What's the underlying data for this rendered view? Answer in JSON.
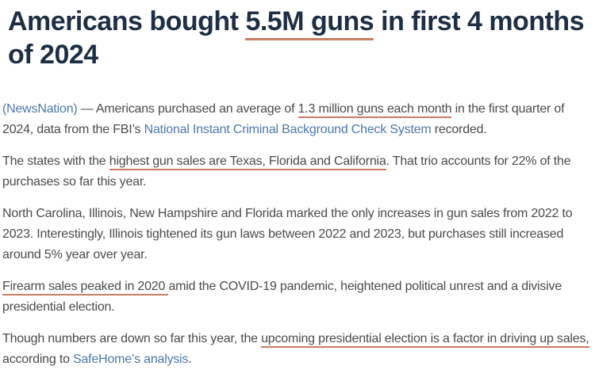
{
  "colors": {
    "background": "#ffffff",
    "headline_text": "#1d2e45",
    "body_text": "#4b4b4b",
    "link": "#4e78ae",
    "annotation_underline": "#c87e64"
  },
  "headline": {
    "segments": [
      {
        "text": "Americans bought ",
        "style": "plain"
      },
      {
        "text": "5.5M guns",
        "style": "underline"
      },
      {
        "text": " in first 4 months of 2024",
        "style": "plain"
      }
    ]
  },
  "article": {
    "paragraphs": [
      {
        "segments": [
          {
            "text": "(NewsNation)",
            "style": "link",
            "name": "newsnation-link"
          },
          {
            "text": " — Americans purchased an average of ",
            "style": "plain"
          },
          {
            "text": "1.3 million guns each month",
            "style": "underline"
          },
          {
            "text": " in the first quarter of 2024, data from the FBI’s ",
            "style": "plain"
          },
          {
            "text": "National Instant Criminal Background Check System",
            "style": "link",
            "name": "nics-link"
          },
          {
            "text": " recorded.",
            "style": "plain"
          }
        ]
      },
      {
        "segments": [
          {
            "text": "The states with the ",
            "style": "plain"
          },
          {
            "text": "highest gun sales are Texas, Florida and California",
            "style": "underline"
          },
          {
            "text": ". That trio accounts for 22% of the purchases so far this year.",
            "style": "plain"
          }
        ]
      },
      {
        "segments": [
          {
            "text": "North Carolina, Illinois, New Hampshire and Florida marked the only increases in gun sales from 2022 to 2023. Interestingly, Illinois tightened its gun laws between 2022 and 2023, but purchases still increased around 5% year over year.",
            "style": "plain"
          }
        ]
      },
      {
        "segments": [
          {
            "text": "Firearm sales peaked in 2020 ",
            "style": "underline"
          },
          {
            "text": "amid the COVID-19 pandemic, heightened political unrest and a divisive presidential election.",
            "style": "plain"
          }
        ]
      },
      {
        "segments": [
          {
            "text": "Though numbers are down so far this year, the ",
            "style": "plain"
          },
          {
            "text": "upcoming presidential election is a factor in driving up sales,",
            "style": "underline"
          },
          {
            "text": " according to ",
            "style": "plain"
          },
          {
            "text": "SafeHome’s analysis",
            "style": "link",
            "name": "safehome-analysis-link"
          },
          {
            "text": ".",
            "style": "plain"
          }
        ]
      }
    ]
  }
}
